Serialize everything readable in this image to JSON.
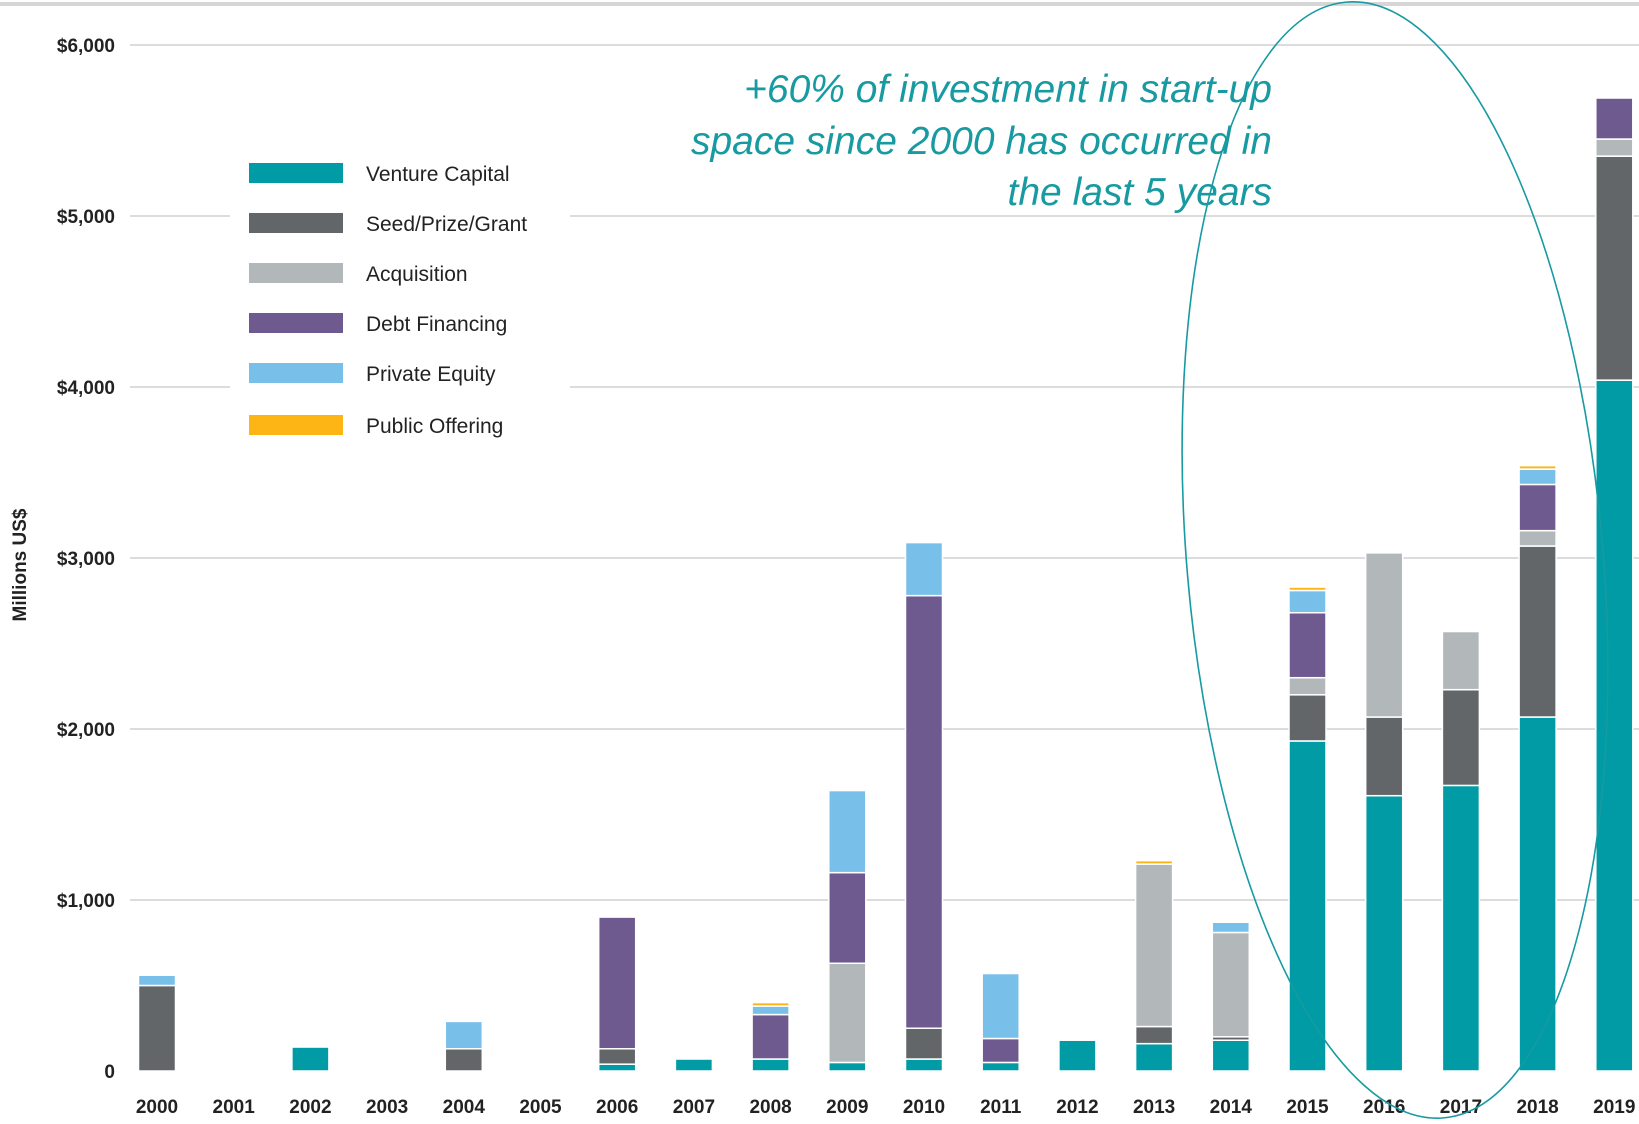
{
  "chart_data": {
    "type": "bar",
    "stacked": true,
    "ylabel": "Millions US$",
    "ylim": [
      0,
      6000
    ],
    "yticks": [
      {
        "value": 0,
        "label": "0"
      },
      {
        "value": 1000,
        "label": "$1,000"
      },
      {
        "value": 2000,
        "label": "$2,000"
      },
      {
        "value": 3000,
        "label": "$3,000"
      },
      {
        "value": 4000,
        "label": "$4,000"
      },
      {
        "value": 5000,
        "label": "$5,000"
      },
      {
        "value": 6000,
        "label": "$6,000"
      }
    ],
    "grid": true,
    "legend_position": "top-left",
    "categories": [
      "2000",
      "2001",
      "2002",
      "2003",
      "2004",
      "2005",
      "2006",
      "2007",
      "2008",
      "2009",
      "2010",
      "2011",
      "2012",
      "2013",
      "2014",
      "2015",
      "2016",
      "2017",
      "2018",
      "2019"
    ],
    "series": [
      {
        "name": "Venture Capital",
        "color": "#009ba4",
        "values": [
          0,
          0,
          140,
          0,
          0,
          0,
          40,
          70,
          70,
          50,
          70,
          50,
          180,
          160,
          180,
          1930,
          1610,
          1670,
          2070,
          4040
        ]
      },
      {
        "name": "Seed/Prize/Grant",
        "color": "#636668",
        "values": [
          500,
          0,
          0,
          0,
          130,
          0,
          90,
          0,
          0,
          0,
          180,
          0,
          0,
          100,
          20,
          270,
          460,
          560,
          1000,
          1310
        ]
      },
      {
        "name": "Acquisition",
        "color": "#b2b8ba",
        "values": [
          0,
          0,
          0,
          0,
          0,
          0,
          0,
          0,
          0,
          580,
          0,
          0,
          0,
          950,
          610,
          100,
          960,
          340,
          90,
          100
        ]
      },
      {
        "name": "Debt Financing",
        "color": "#6e5a8e",
        "values": [
          0,
          0,
          0,
          0,
          0,
          0,
          770,
          0,
          260,
          530,
          2530,
          140,
          0,
          0,
          0,
          380,
          0,
          0,
          270,
          240
        ]
      },
      {
        "name": "Private Equity",
        "color": "#78bfea",
        "values": [
          60,
          0,
          0,
          0,
          160,
          0,
          0,
          0,
          50,
          480,
          310,
          380,
          0,
          0,
          60,
          130,
          0,
          0,
          90,
          0
        ]
      },
      {
        "name": "Public Offering",
        "color": "#fdb515",
        "values": [
          0,
          0,
          0,
          0,
          0,
          0,
          0,
          0,
          20,
          0,
          0,
          0,
          0,
          20,
          0,
          20,
          0,
          0,
          20,
          0
        ]
      }
    ],
    "annotation": {
      "lines": [
        "+60% of investment in start-up",
        "space since 2000 has occurred in",
        "the last 5 years"
      ],
      "color": "#179aa1"
    },
    "highlight_ellipse": {
      "covers": [
        "2015",
        "2016",
        "2017",
        "2018",
        "2019"
      ],
      "color": "#179aa1"
    }
  }
}
